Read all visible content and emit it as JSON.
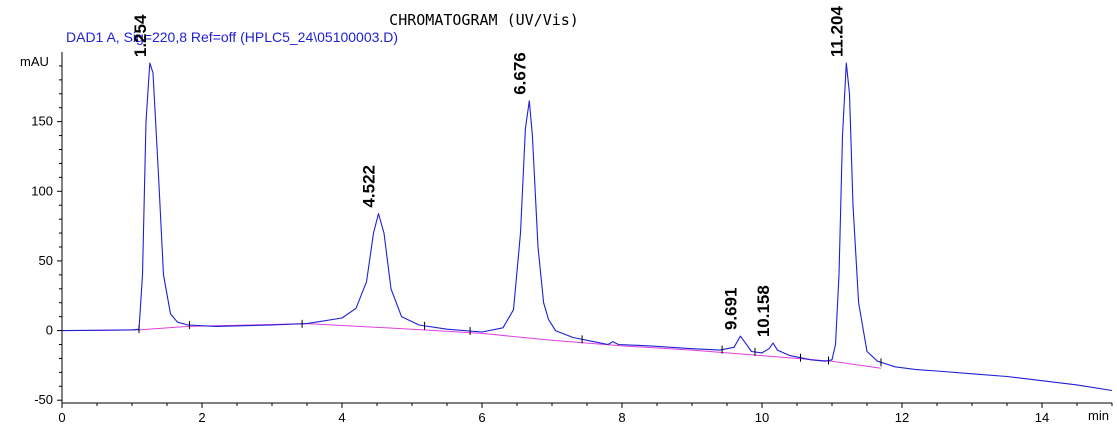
{
  "chart_data": {
    "type": "line",
    "title": "CHROMATOGRAM (UV/Vis)",
    "subtitle": "DAD1 A, Sig=220,8 Ref=off (HPLC5_24\\05100003.D)",
    "ylabel": "mAU",
    "xlabel": "min",
    "xlim": [
      0,
      15
    ],
    "ylim": [
      -52,
      200
    ],
    "x_ticks": [
      0,
      2,
      4,
      6,
      8,
      10,
      12,
      14
    ],
    "y_ticks": [
      -50,
      0,
      50,
      100,
      150
    ],
    "peaks": [
      {
        "label": "1.254",
        "rt": 1.254,
        "height": 192
      },
      {
        "label": "4.522",
        "rt": 4.522,
        "height": 84
      },
      {
        "label": "6.676",
        "rt": 6.676,
        "height": 165
      },
      {
        "label": "9.691",
        "rt": 9.691,
        "height": -4
      },
      {
        "label": "10.158",
        "rt": 10.158,
        "height": -9
      },
      {
        "label": "11.204",
        "rt": 11.204,
        "height": 192
      }
    ],
    "series": [
      {
        "color": "#1f1fd6",
        "points": [
          [
            0,
            0
          ],
          [
            0.5,
            0.2
          ],
          [
            1.0,
            0.5
          ],
          [
            1.1,
            1
          ],
          [
            1.15,
            40
          ],
          [
            1.2,
            150
          ],
          [
            1.254,
            192
          ],
          [
            1.3,
            185
          ],
          [
            1.38,
            110
          ],
          [
            1.45,
            40
          ],
          [
            1.55,
            12
          ],
          [
            1.65,
            6
          ],
          [
            1.8,
            4
          ],
          [
            2.2,
            3
          ],
          [
            3.0,
            4
          ],
          [
            3.5,
            5
          ],
          [
            4.0,
            9
          ],
          [
            4.2,
            16
          ],
          [
            4.35,
            35
          ],
          [
            4.45,
            70
          ],
          [
            4.522,
            84
          ],
          [
            4.6,
            70
          ],
          [
            4.7,
            30
          ],
          [
            4.85,
            10
          ],
          [
            5.1,
            4
          ],
          [
            5.5,
            1
          ],
          [
            6.0,
            -1
          ],
          [
            6.3,
            2
          ],
          [
            6.45,
            15
          ],
          [
            6.55,
            70
          ],
          [
            6.62,
            145
          ],
          [
            6.676,
            165
          ],
          [
            6.72,
            140
          ],
          [
            6.8,
            60
          ],
          [
            6.88,
            20
          ],
          [
            6.95,
            8
          ],
          [
            7.05,
            0
          ],
          [
            7.3,
            -5
          ],
          [
            7.6,
            -8
          ],
          [
            7.8,
            -10
          ],
          [
            7.87,
            -8
          ],
          [
            7.95,
            -10
          ],
          [
            8.4,
            -11
          ],
          [
            9.0,
            -13
          ],
          [
            9.4,
            -14
          ],
          [
            9.6,
            -12
          ],
          [
            9.691,
            -4
          ],
          [
            9.75,
            -8
          ],
          [
            9.85,
            -15
          ],
          [
            10.0,
            -16
          ],
          [
            10.1,
            -13
          ],
          [
            10.158,
            -9
          ],
          [
            10.22,
            -14
          ],
          [
            10.4,
            -18
          ],
          [
            10.7,
            -21
          ],
          [
            10.9,
            -22
          ],
          [
            11.0,
            -21
          ],
          [
            11.05,
            -10
          ],
          [
            11.1,
            40
          ],
          [
            11.15,
            140
          ],
          [
            11.204,
            192
          ],
          [
            11.25,
            170
          ],
          [
            11.3,
            90
          ],
          [
            11.38,
            20
          ],
          [
            11.5,
            -15
          ],
          [
            11.65,
            -22
          ],
          [
            11.9,
            -26
          ],
          [
            12.2,
            -28
          ],
          [
            12.5,
            -29
          ],
          [
            13.0,
            -31
          ],
          [
            13.5,
            -33
          ],
          [
            14.0,
            -36
          ],
          [
            14.5,
            -39
          ],
          [
            15.0,
            -43
          ]
        ]
      },
      {
        "color": "#e040e0",
        "points": [
          [
            0,
            0
          ],
          [
            1.1,
            0.5
          ],
          [
            1.8,
            3
          ],
          [
            3.5,
            5
          ],
          [
            5.0,
            1
          ],
          [
            6.0,
            -2
          ],
          [
            7.0,
            -7
          ],
          [
            8.0,
            -11
          ],
          [
            9.0,
            -14
          ],
          [
            10.0,
            -18
          ],
          [
            11.0,
            -22
          ],
          [
            11.7,
            -27
          ]
        ]
      }
    ],
    "integration_ticks": [
      1.1,
      1.82,
      3.43,
      5.18,
      5.83,
      7.43,
      9.43,
      9.9,
      10.55,
      10.95,
      11.7
    ]
  }
}
